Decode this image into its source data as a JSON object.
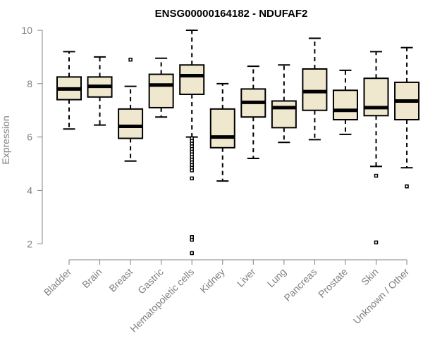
{
  "chart_data": {
    "type": "box",
    "title": "ENSG00000164182 - NDUFAF2",
    "ylabel": "Expression",
    "xlabel": "",
    "ylim": [
      1.4,
      10.0
    ],
    "yticks": [
      2,
      4,
      6,
      8,
      10
    ],
    "categories": [
      "Bladder",
      "Brain",
      "Breast",
      "Gastric",
      "Hematopoietic cells",
      "Kidney",
      "Liver",
      "Lung",
      "Pancreas",
      "Prostate",
      "Skin",
      "Unknown / Other"
    ],
    "boxes": [
      {
        "category": "Bladder",
        "whisker_low": 6.3,
        "q1": 7.4,
        "median": 7.8,
        "q3": 8.25,
        "whisker_high": 9.2,
        "outliers": []
      },
      {
        "category": "Brain",
        "whisker_low": 6.45,
        "q1": 7.5,
        "median": 7.9,
        "q3": 8.25,
        "whisker_high": 9.0,
        "outliers": []
      },
      {
        "category": "Breast",
        "whisker_low": 5.1,
        "q1": 5.95,
        "median": 6.4,
        "q3": 7.05,
        "whisker_high": 7.9,
        "outliers": [
          8.9
        ]
      },
      {
        "category": "Gastric",
        "whisker_low": 6.75,
        "q1": 7.1,
        "median": 7.95,
        "q3": 8.35,
        "whisker_high": 8.95,
        "outliers": []
      },
      {
        "category": "Hematopoietic cells",
        "whisker_low": 6.0,
        "q1": 7.6,
        "median": 8.3,
        "q3": 8.7,
        "whisker_high": 10.0,
        "outliers": [
          5.95,
          5.85,
          5.75,
          5.65,
          5.55,
          5.45,
          5.35,
          5.25,
          5.15,
          5.05,
          4.95,
          4.85,
          4.75,
          4.45,
          2.25,
          2.15,
          1.65
        ]
      },
      {
        "category": "Kidney",
        "whisker_low": 4.35,
        "q1": 5.6,
        "median": 6.0,
        "q3": 7.05,
        "whisker_high": 8.0,
        "outliers": []
      },
      {
        "category": "Liver",
        "whisker_low": 5.2,
        "q1": 6.75,
        "median": 7.3,
        "q3": 7.8,
        "whisker_high": 8.65,
        "outliers": []
      },
      {
        "category": "Lung",
        "whisker_low": 5.8,
        "q1": 6.35,
        "median": 7.1,
        "q3": 7.35,
        "whisker_high": 8.7,
        "outliers": []
      },
      {
        "category": "Pancreas",
        "whisker_low": 5.9,
        "q1": 7.0,
        "median": 7.7,
        "q3": 8.55,
        "whisker_high": 9.7,
        "outliers": []
      },
      {
        "category": "Prostate",
        "whisker_low": 6.1,
        "q1": 6.65,
        "median": 7.0,
        "q3": 7.75,
        "whisker_high": 8.5,
        "outliers": []
      },
      {
        "category": "Skin",
        "whisker_low": 4.9,
        "q1": 6.8,
        "median": 7.1,
        "q3": 8.2,
        "whisker_high": 9.2,
        "outliers": [
          4.55,
          2.05
        ]
      },
      {
        "category": "Unknown / Other",
        "whisker_low": 4.85,
        "q1": 6.65,
        "median": 7.35,
        "q3": 8.05,
        "whisker_high": 9.35,
        "outliers": [
          4.15
        ]
      }
    ],
    "box_fill": "#efe8cf",
    "stroke": "#000000",
    "axis_color": "#808080",
    "grid": false,
    "legend": "none"
  }
}
